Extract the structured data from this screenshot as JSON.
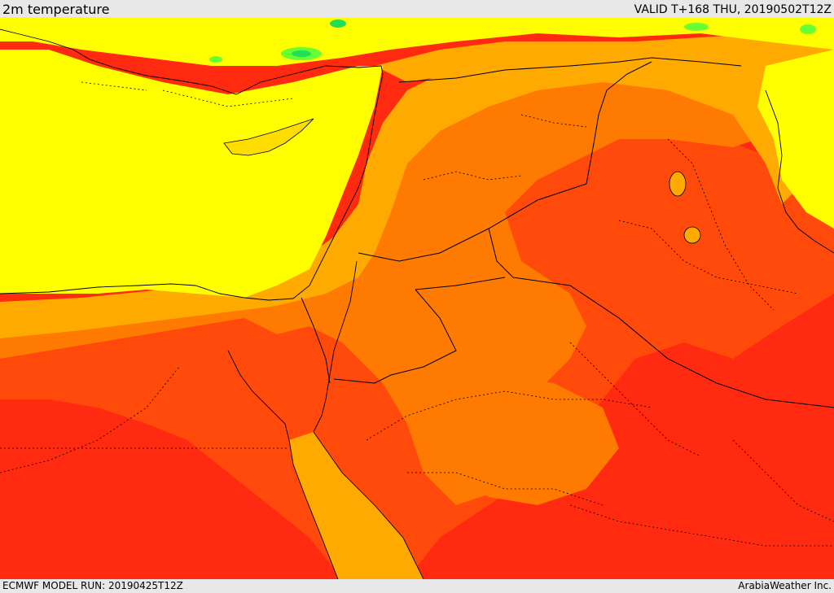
{
  "header": {
    "field_title": "2m temperature",
    "valid_time": "VALID T+168 THU, 20190502T12Z"
  },
  "footer": {
    "model_run": "ECMWF MODEL RUN: 20190425T12Z",
    "provider": "ArabiaWeather Inc."
  },
  "map": {
    "colors": {
      "very_hot": "#ff2a10",
      "hot": "#ff4a0c",
      "warm_orange": "#ff7a00",
      "orange": "#ffaa00",
      "yellow": "#ffff00",
      "light_green": "#66ff33",
      "green": "#22dd55",
      "border_line": "#000000"
    }
  }
}
